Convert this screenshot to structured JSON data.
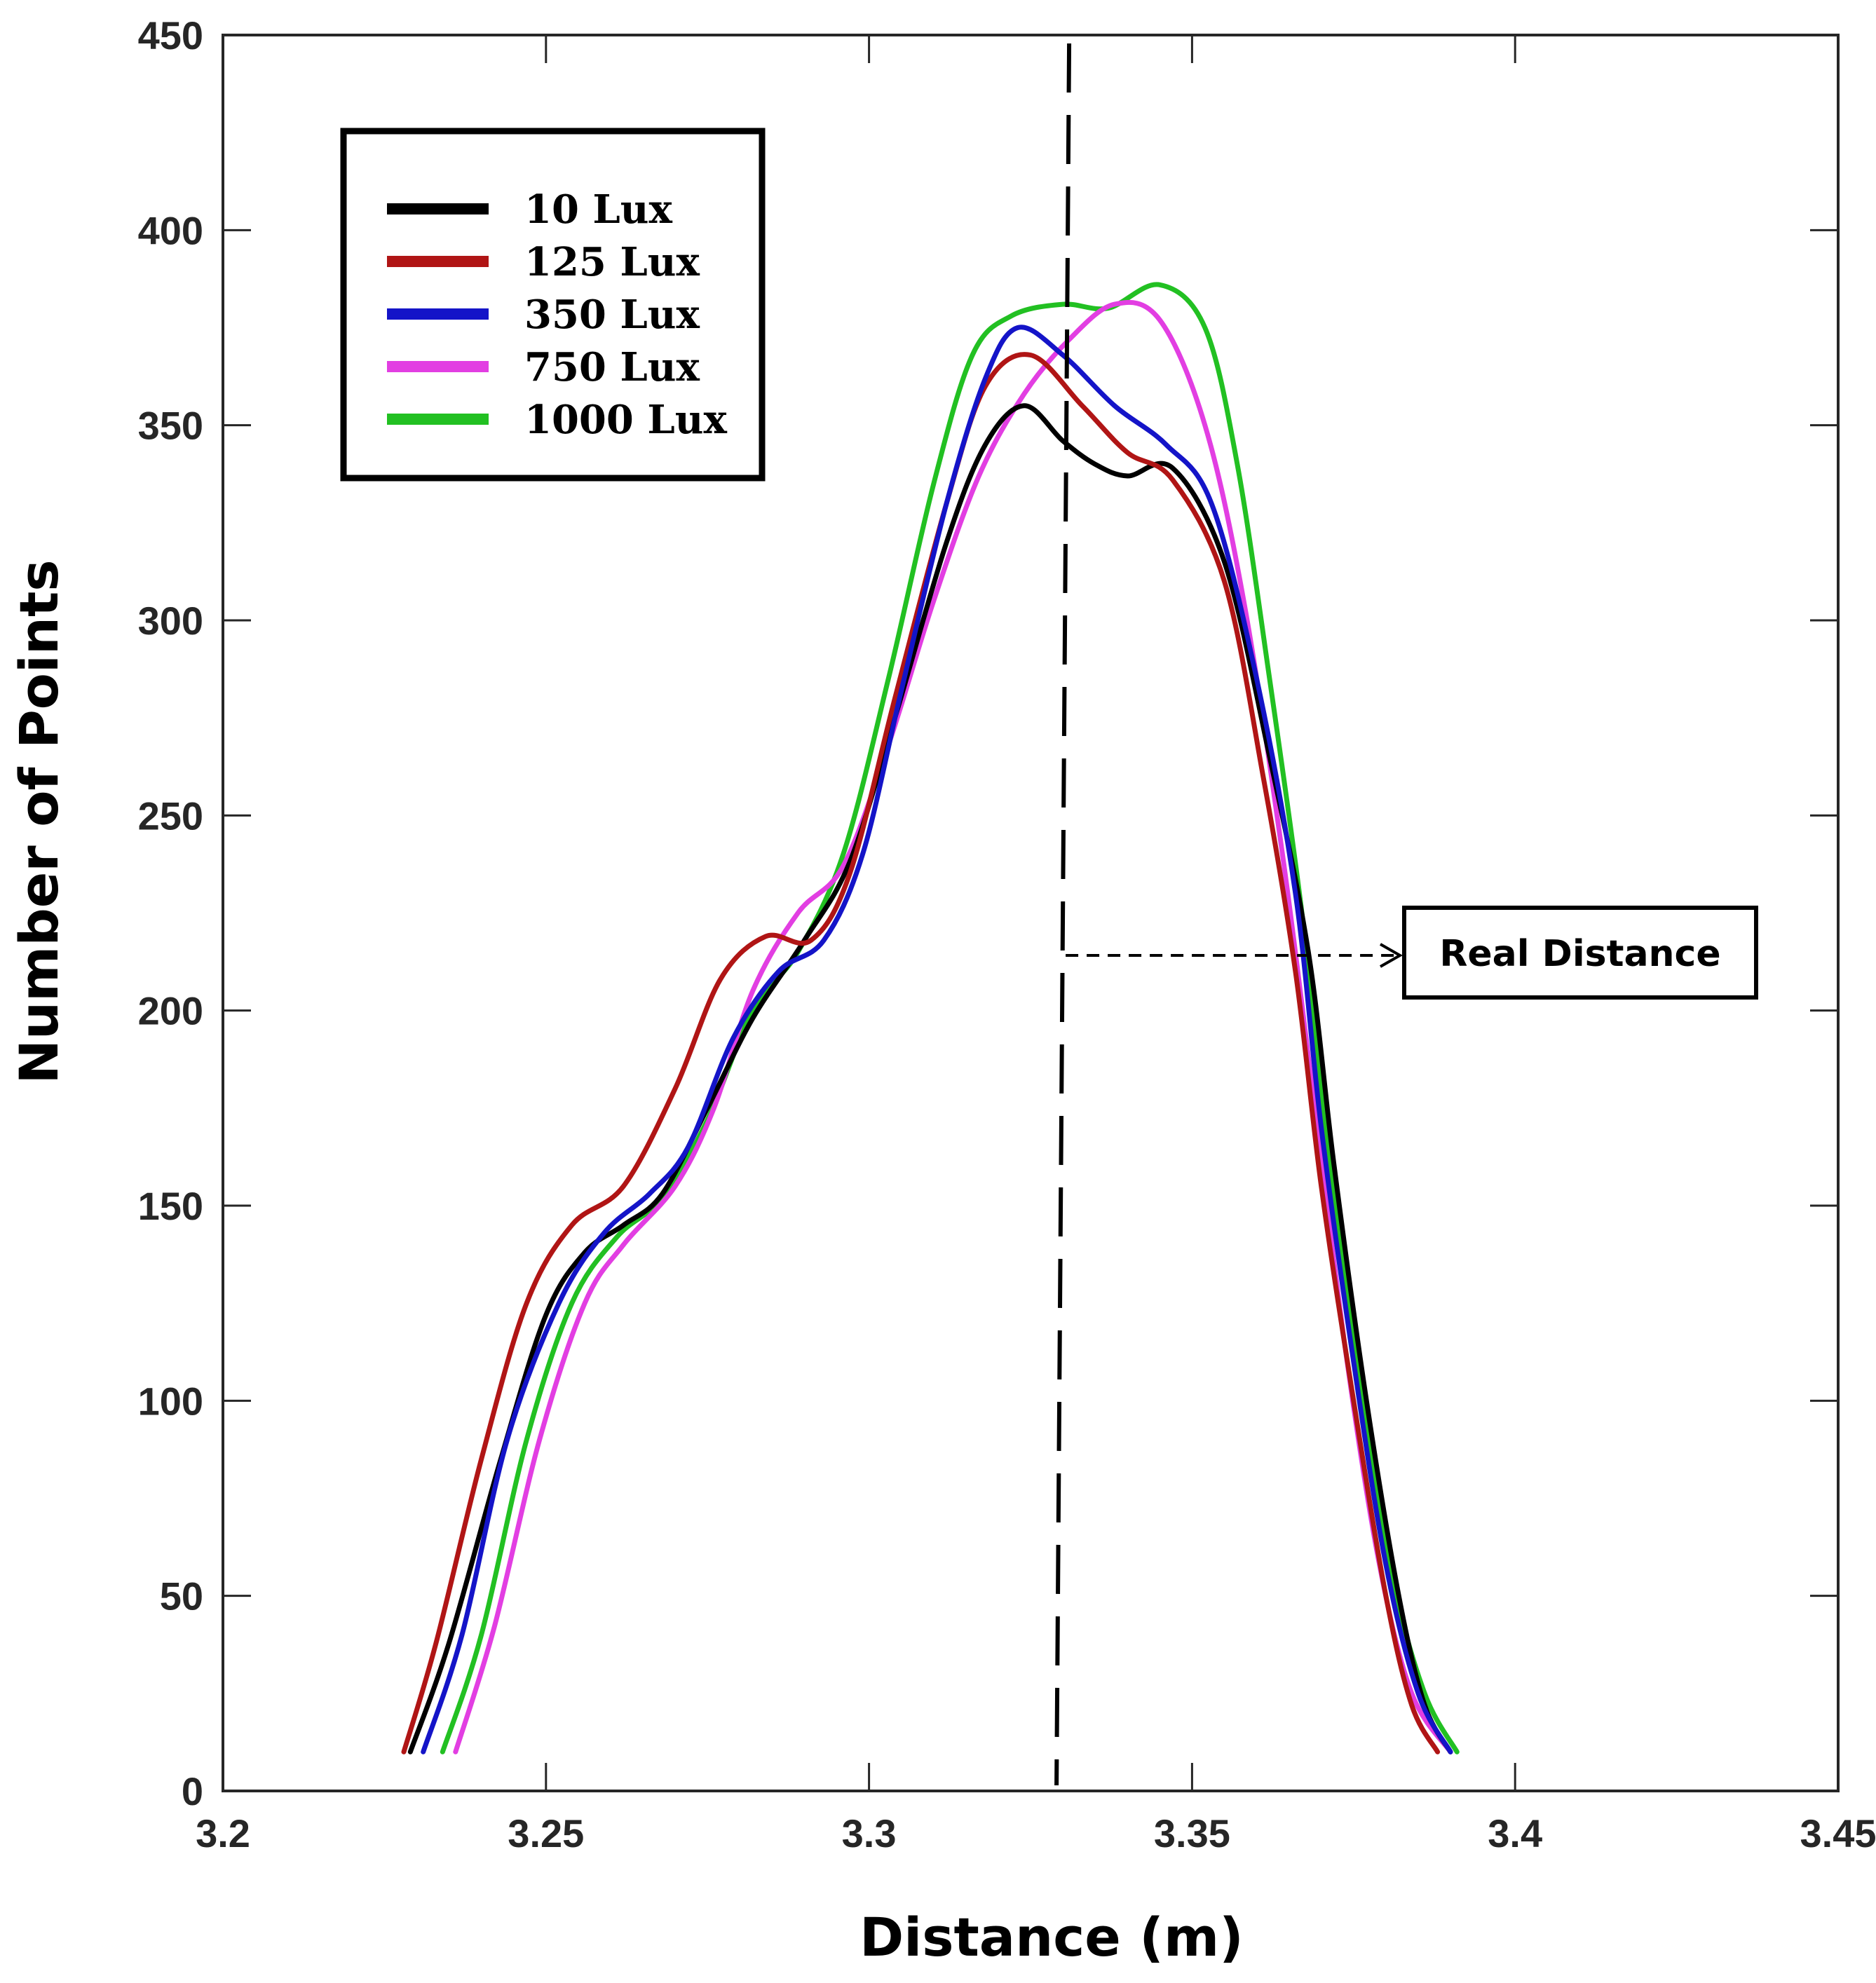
{
  "chart_data": {
    "type": "line",
    "title": "",
    "xlabel": "Distance (m)",
    "ylabel": "Number of Points",
    "xlim": [
      3.2,
      3.45
    ],
    "ylim": [
      0,
      450
    ],
    "xticks": [
      3.2,
      3.25,
      3.3,
      3.35,
      3.4,
      3.45
    ],
    "xtick_labels": [
      "3.2",
      "3.25",
      "3.3",
      "3.35",
      "3.4",
      "3.45"
    ],
    "yticks": [
      0,
      50,
      100,
      150,
      200,
      250,
      300,
      350,
      400,
      450
    ],
    "ytick_labels": [
      "0",
      "50",
      "100",
      "150",
      "200",
      "250",
      "300",
      "350",
      "400",
      "450"
    ],
    "grid": false,
    "legend_position": "top-left",
    "series": [
      {
        "name": "10 Lux",
        "color": "#000000",
        "points": [
          [
            3.229,
            10
          ],
          [
            3.235,
            38
          ],
          [
            3.243,
            85
          ],
          [
            3.25,
            122
          ],
          [
            3.256,
            138
          ],
          [
            3.262,
            145
          ],
          [
            3.268,
            153
          ],
          [
            3.275,
            175
          ],
          [
            3.282,
            198
          ],
          [
            3.29,
            218
          ],
          [
            3.297,
            238
          ],
          [
            3.304,
            275
          ],
          [
            3.312,
            320
          ],
          [
            3.318,
            345
          ],
          [
            3.324,
            355
          ],
          [
            3.33,
            346
          ],
          [
            3.335,
            340
          ],
          [
            3.34,
            337
          ],
          [
            3.347,
            339
          ],
          [
            3.355,
            315
          ],
          [
            3.362,
            265
          ],
          [
            3.368,
            215
          ],
          [
            3.372,
            160
          ],
          [
            3.377,
            100
          ],
          [
            3.382,
            50
          ],
          [
            3.386,
            22
          ],
          [
            3.39,
            10
          ]
        ]
      },
      {
        "name": "125 Lux",
        "color": "#b01515",
        "points": [
          [
            3.228,
            10
          ],
          [
            3.233,
            38
          ],
          [
            3.24,
            85
          ],
          [
            3.247,
            125
          ],
          [
            3.254,
            145
          ],
          [
            3.262,
            155
          ],
          [
            3.27,
            180
          ],
          [
            3.277,
            208
          ],
          [
            3.284,
            219
          ],
          [
            3.291,
            218
          ],
          [
            3.297,
            235
          ],
          [
            3.304,
            280
          ],
          [
            3.312,
            330
          ],
          [
            3.318,
            360
          ],
          [
            3.325,
            368
          ],
          [
            3.333,
            355
          ],
          [
            3.34,
            343
          ],
          [
            3.347,
            336
          ],
          [
            3.355,
            310
          ],
          [
            3.361,
            260
          ],
          [
            3.366,
            210
          ],
          [
            3.37,
            155
          ],
          [
            3.375,
            100
          ],
          [
            3.38,
            50
          ],
          [
            3.384,
            22
          ],
          [
            3.388,
            10
          ]
        ]
      },
      {
        "name": "350 Lux",
        "color": "#1414c8",
        "points": [
          [
            3.231,
            10
          ],
          [
            3.237,
            40
          ],
          [
            3.244,
            90
          ],
          [
            3.252,
            125
          ],
          [
            3.259,
            143
          ],
          [
            3.266,
            153
          ],
          [
            3.272,
            165
          ],
          [
            3.279,
            193
          ],
          [
            3.286,
            210
          ],
          [
            3.293,
            218
          ],
          [
            3.299,
            240
          ],
          [
            3.305,
            282
          ],
          [
            3.312,
            330
          ],
          [
            3.318,
            362
          ],
          [
            3.323,
            375
          ],
          [
            3.33,
            368
          ],
          [
            3.338,
            355
          ],
          [
            3.346,
            345
          ],
          [
            3.353,
            330
          ],
          [
            3.36,
            285
          ],
          [
            3.366,
            230
          ],
          [
            3.37,
            170
          ],
          [
            3.375,
            110
          ],
          [
            3.38,
            58
          ],
          [
            3.385,
            25
          ],
          [
            3.39,
            10
          ]
        ]
      },
      {
        "name": "750 Lux",
        "color": "#e23ee2",
        "points": [
          [
            3.236,
            10
          ],
          [
            3.242,
            42
          ],
          [
            3.249,
            90
          ],
          [
            3.256,
            125
          ],
          [
            3.262,
            140
          ],
          [
            3.27,
            155
          ],
          [
            3.276,
            175
          ],
          [
            3.282,
            205
          ],
          [
            3.289,
            225
          ],
          [
            3.296,
            237
          ],
          [
            3.303,
            268
          ],
          [
            3.31,
            305
          ],
          [
            3.317,
            337
          ],
          [
            3.324,
            358
          ],
          [
            3.331,
            372
          ],
          [
            3.338,
            381
          ],
          [
            3.345,
            377
          ],
          [
            3.352,
            350
          ],
          [
            3.358,
            305
          ],
          [
            3.364,
            240
          ],
          [
            3.369,
            175
          ],
          [
            3.374,
            110
          ],
          [
            3.379,
            58
          ],
          [
            3.384,
            25
          ],
          [
            3.39,
            10
          ]
        ]
      },
      {
        "name": "1000 Lux",
        "color": "#22c022",
        "points": [
          [
            3.234,
            10
          ],
          [
            3.24,
            40
          ],
          [
            3.247,
            90
          ],
          [
            3.254,
            125
          ],
          [
            3.261,
            142
          ],
          [
            3.268,
            152
          ],
          [
            3.275,
            172
          ],
          [
            3.282,
            200
          ],
          [
            3.289,
            215
          ],
          [
            3.296,
            240
          ],
          [
            3.303,
            285
          ],
          [
            3.31,
            335
          ],
          [
            3.316,
            368
          ],
          [
            3.322,
            378
          ],
          [
            3.33,
            381
          ],
          [
            3.337,
            380
          ],
          [
            3.345,
            386
          ],
          [
            3.352,
            375
          ],
          [
            3.357,
            340
          ],
          [
            3.362,
            285
          ],
          [
            3.367,
            225
          ],
          [
            3.371,
            165
          ],
          [
            3.376,
            105
          ],
          [
            3.381,
            55
          ],
          [
            3.386,
            25
          ],
          [
            3.391,
            10
          ]
        ]
      }
    ],
    "annotations": [
      {
        "text": "Real Distance",
        "x": 3.33
      }
    ]
  }
}
